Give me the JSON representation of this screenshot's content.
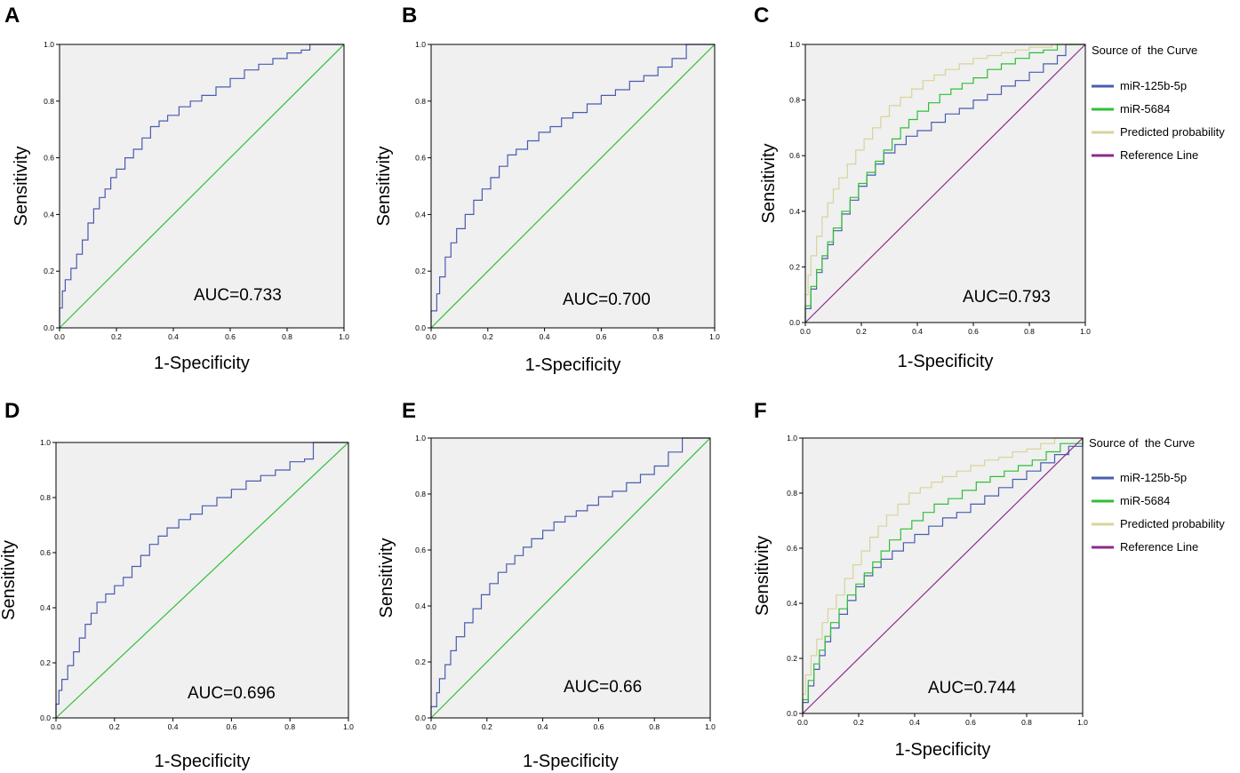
{
  "figure": {
    "panels": [
      "A",
      "B",
      "C",
      "D",
      "E",
      "F"
    ]
  },
  "colors": {
    "plot_background": "#f0f0f0",
    "frame": "#000000",
    "mir125b": "#4a5cb0",
    "mir5684": "#2fbf35",
    "predicted": "#d8d39a",
    "reference_single": "#2fbf35",
    "reference_multi": "#8c2a8c"
  },
  "chart_data": [
    {
      "panel": "A",
      "type": "line",
      "xlabel": "1-Specificity",
      "ylabel": "Sensitivity",
      "x_ticks": [
        "0.0",
        "0.2",
        "0.4",
        "0.6",
        "0.8",
        "1.0"
      ],
      "y_ticks": [
        "0.0",
        "0.2",
        "0.4",
        "0.6",
        "0.8",
        "1.0"
      ],
      "xlim": [
        0,
        1
      ],
      "ylim": [
        0,
        1
      ],
      "annotation": "AUC=0.733",
      "series": [
        {
          "name": "ROC",
          "color_key": "mir125b",
          "step": true,
          "x": [
            0,
            0,
            0.01,
            0.02,
            0.04,
            0.06,
            0.08,
            0.1,
            0.12,
            0.14,
            0.16,
            0.18,
            0.2,
            0.23,
            0.26,
            0.29,
            0.32,
            0.35,
            0.38,
            0.42,
            0.46,
            0.5,
            0.55,
            0.6,
            0.65,
            0.7,
            0.75,
            0.8,
            0.85,
            0.88,
            1.0
          ],
          "y": [
            0,
            0.07,
            0.13,
            0.17,
            0.21,
            0.26,
            0.31,
            0.37,
            0.42,
            0.46,
            0.49,
            0.53,
            0.56,
            0.6,
            0.63,
            0.67,
            0.71,
            0.73,
            0.75,
            0.78,
            0.8,
            0.82,
            0.85,
            0.88,
            0.91,
            0.93,
            0.95,
            0.97,
            0.98,
            1.0,
            1.0
          ]
        },
        {
          "name": "Reference",
          "color_key": "reference_single",
          "step": false,
          "x": [
            0,
            1
          ],
          "y": [
            0,
            1
          ]
        }
      ]
    },
    {
      "panel": "B",
      "type": "line",
      "xlabel": "1-Specificity",
      "ylabel": "Sensitivity",
      "x_ticks": [
        "0.0",
        "0.2",
        "0.4",
        "0.6",
        "0.8",
        "1.0"
      ],
      "y_ticks": [
        "0.0",
        "0.2",
        "0.4",
        "0.6",
        "0.8",
        "1.0"
      ],
      "xlim": [
        0,
        1
      ],
      "ylim": [
        0,
        1
      ],
      "annotation": "AUC=0.700",
      "series": [
        {
          "name": "ROC",
          "color_key": "mir125b",
          "step": true,
          "x": [
            0,
            0,
            0.02,
            0.03,
            0.05,
            0.07,
            0.09,
            0.12,
            0.15,
            0.18,
            0.21,
            0.24,
            0.27,
            0.3,
            0.34,
            0.38,
            0.42,
            0.46,
            0.5,
            0.55,
            0.6,
            0.65,
            0.7,
            0.75,
            0.8,
            0.85,
            0.9,
            1.0
          ],
          "y": [
            0,
            0.06,
            0.12,
            0.18,
            0.25,
            0.3,
            0.35,
            0.4,
            0.45,
            0.49,
            0.53,
            0.57,
            0.61,
            0.63,
            0.66,
            0.69,
            0.71,
            0.74,
            0.76,
            0.79,
            0.82,
            0.84,
            0.87,
            0.89,
            0.92,
            0.95,
            1.0,
            1.0
          ]
        },
        {
          "name": "Reference",
          "color_key": "reference_single",
          "step": false,
          "x": [
            0,
            1
          ],
          "y": [
            0,
            1
          ]
        }
      ]
    },
    {
      "panel": "C",
      "type": "line",
      "xlabel": "1-Specificity",
      "ylabel": "Sensitivity",
      "x_ticks": [
        "0.0",
        "0.2",
        "0.4",
        "0.6",
        "0.8",
        "1.0"
      ],
      "y_ticks": [
        "0.0",
        "0.2",
        "0.4",
        "0.6",
        "0.8",
        "1.0"
      ],
      "xlim": [
        0,
        1
      ],
      "ylim": [
        0,
        1
      ],
      "annotation": "AUC=0.793",
      "legend": {
        "title": "Source of  the Curve",
        "position": "right"
      },
      "series": [
        {
          "name": "miR-125b-5p",
          "color_key": "mir125b",
          "step": true,
          "x": [
            0,
            0,
            0.02,
            0.04,
            0.06,
            0.08,
            0.1,
            0.13,
            0.16,
            0.19,
            0.22,
            0.25,
            0.28,
            0.32,
            0.36,
            0.4,
            0.45,
            0.5,
            0.55,
            0.6,
            0.65,
            0.7,
            0.75,
            0.8,
            0.85,
            0.9,
            0.93,
            1.0
          ],
          "y": [
            0,
            0.05,
            0.12,
            0.18,
            0.23,
            0.28,
            0.33,
            0.39,
            0.44,
            0.49,
            0.53,
            0.57,
            0.61,
            0.64,
            0.67,
            0.69,
            0.72,
            0.75,
            0.77,
            0.8,
            0.82,
            0.85,
            0.87,
            0.9,
            0.93,
            0.96,
            1.0,
            1.0
          ]
        },
        {
          "name": "miR-5684",
          "color_key": "mir5684",
          "step": true,
          "x": [
            0,
            0,
            0.02,
            0.04,
            0.06,
            0.08,
            0.1,
            0.13,
            0.16,
            0.19,
            0.22,
            0.25,
            0.28,
            0.31,
            0.34,
            0.37,
            0.4,
            0.44,
            0.48,
            0.52,
            0.56,
            0.6,
            0.65,
            0.7,
            0.75,
            0.8,
            0.85,
            0.9,
            1.0
          ],
          "y": [
            0,
            0.06,
            0.13,
            0.19,
            0.24,
            0.29,
            0.34,
            0.4,
            0.45,
            0.5,
            0.54,
            0.58,
            0.62,
            0.66,
            0.7,
            0.73,
            0.76,
            0.79,
            0.82,
            0.84,
            0.86,
            0.88,
            0.91,
            0.93,
            0.95,
            0.97,
            0.98,
            1.0,
            1.0
          ]
        },
        {
          "name": "Predicted probability",
          "color_key": "predicted",
          "step": true,
          "x": [
            0,
            0,
            0.01,
            0.02,
            0.04,
            0.06,
            0.08,
            0.1,
            0.12,
            0.15,
            0.18,
            0.21,
            0.24,
            0.27,
            0.3,
            0.34,
            0.38,
            0.42,
            0.46,
            0.5,
            0.55,
            0.6,
            0.65,
            0.7,
            0.75,
            0.8,
            0.85,
            0.88,
            1.0
          ],
          "y": [
            0,
            0.1,
            0.17,
            0.24,
            0.31,
            0.38,
            0.43,
            0.48,
            0.52,
            0.57,
            0.62,
            0.66,
            0.7,
            0.74,
            0.78,
            0.81,
            0.84,
            0.87,
            0.89,
            0.91,
            0.93,
            0.95,
            0.96,
            0.97,
            0.98,
            0.99,
            0.99,
            1.0,
            1.0
          ]
        },
        {
          "name": "Reference Line",
          "color_key": "reference_multi",
          "step": false,
          "x": [
            0,
            1
          ],
          "y": [
            0,
            1
          ]
        }
      ]
    },
    {
      "panel": "D",
      "type": "line",
      "xlabel": "1-Specificity",
      "ylabel": "Sensitivity",
      "x_ticks": [
        "0.0",
        "0.2",
        "0.4",
        "0.6",
        "0.8",
        "1.0"
      ],
      "y_ticks": [
        "0.0",
        "0.2",
        "0.4",
        "0.6",
        "0.8",
        "1.0"
      ],
      "xlim": [
        0,
        1
      ],
      "ylim": [
        0,
        1
      ],
      "annotation": "AUC=0.696",
      "series": [
        {
          "name": "ROC",
          "color_key": "mir125b",
          "step": true,
          "x": [
            0,
            0,
            0.01,
            0.02,
            0.04,
            0.06,
            0.08,
            0.1,
            0.12,
            0.14,
            0.17,
            0.2,
            0.23,
            0.26,
            0.29,
            0.32,
            0.35,
            0.38,
            0.42,
            0.46,
            0.5,
            0.55,
            0.6,
            0.65,
            0.7,
            0.75,
            0.8,
            0.85,
            0.88,
            1.0
          ],
          "y": [
            0,
            0.05,
            0.1,
            0.14,
            0.19,
            0.24,
            0.29,
            0.34,
            0.38,
            0.42,
            0.45,
            0.48,
            0.51,
            0.55,
            0.59,
            0.63,
            0.66,
            0.69,
            0.72,
            0.74,
            0.77,
            0.8,
            0.83,
            0.86,
            0.88,
            0.9,
            0.93,
            0.94,
            1.0,
            1.0
          ]
        },
        {
          "name": "Reference",
          "color_key": "reference_single",
          "step": false,
          "x": [
            0,
            1
          ],
          "y": [
            0,
            1
          ]
        }
      ]
    },
    {
      "panel": "E",
      "type": "line",
      "xlabel": "1-Specificity",
      "ylabel": "Sensitivity",
      "x_ticks": [
        "0.0",
        "0.2",
        "0.4",
        "0.6",
        "0.8",
        "1.0"
      ],
      "y_ticks": [
        "0.0",
        "0.2",
        "0.4",
        "0.6",
        "0.8",
        "1.0"
      ],
      "xlim": [
        0,
        1
      ],
      "ylim": [
        0,
        1
      ],
      "annotation": "AUC=0.66",
      "series": [
        {
          "name": "ROC",
          "color_key": "mir125b",
          "step": true,
          "x": [
            0,
            0,
            0.02,
            0.03,
            0.05,
            0.07,
            0.09,
            0.12,
            0.15,
            0.18,
            0.21,
            0.24,
            0.27,
            0.3,
            0.33,
            0.36,
            0.4,
            0.44,
            0.48,
            0.52,
            0.56,
            0.6,
            0.65,
            0.7,
            0.75,
            0.8,
            0.85,
            0.9,
            1.0
          ],
          "y": [
            0,
            0.04,
            0.09,
            0.14,
            0.19,
            0.24,
            0.29,
            0.34,
            0.39,
            0.44,
            0.48,
            0.52,
            0.55,
            0.58,
            0.61,
            0.64,
            0.67,
            0.7,
            0.72,
            0.74,
            0.76,
            0.79,
            0.81,
            0.84,
            0.87,
            0.9,
            0.95,
            1.0,
            1.0
          ]
        },
        {
          "name": "Reference",
          "color_key": "reference_single",
          "step": false,
          "x": [
            0,
            1
          ],
          "y": [
            0,
            1
          ]
        }
      ]
    },
    {
      "panel": "F",
      "type": "line",
      "xlabel": "1-Specificity",
      "ylabel": "Sensitivity",
      "x_ticks": [
        "0.0",
        "0.2",
        "0.4",
        "0.6",
        "0.8",
        "1.0"
      ],
      "y_ticks": [
        "0.0",
        "0.2",
        "0.4",
        "0.6",
        "0.8",
        "1.0"
      ],
      "xlim": [
        0,
        1
      ],
      "ylim": [
        0,
        1
      ],
      "annotation": "AUC=0.744",
      "legend": {
        "title": "Source of  the Curve",
        "position": "right"
      },
      "series": [
        {
          "name": "miR-125b-5p",
          "color_key": "mir125b",
          "step": true,
          "x": [
            0,
            0,
            0.02,
            0.04,
            0.06,
            0.08,
            0.1,
            0.13,
            0.16,
            0.19,
            0.22,
            0.25,
            0.28,
            0.32,
            0.36,
            0.4,
            0.45,
            0.5,
            0.55,
            0.6,
            0.65,
            0.7,
            0.75,
            0.8,
            0.85,
            0.9,
            0.95,
            1.0
          ],
          "y": [
            0,
            0.04,
            0.1,
            0.16,
            0.21,
            0.26,
            0.31,
            0.36,
            0.41,
            0.46,
            0.5,
            0.53,
            0.56,
            0.59,
            0.62,
            0.65,
            0.68,
            0.71,
            0.73,
            0.76,
            0.79,
            0.82,
            0.85,
            0.88,
            0.91,
            0.94,
            0.97,
            1.0
          ]
        },
        {
          "name": "miR-5684",
          "color_key": "mir5684",
          "step": true,
          "x": [
            0,
            0,
            0.02,
            0.04,
            0.06,
            0.08,
            0.1,
            0.13,
            0.16,
            0.19,
            0.22,
            0.25,
            0.28,
            0.31,
            0.35,
            0.39,
            0.43,
            0.47,
            0.52,
            0.57,
            0.62,
            0.67,
            0.72,
            0.77,
            0.82,
            0.87,
            0.92,
            1.0
          ],
          "y": [
            0,
            0.05,
            0.12,
            0.18,
            0.23,
            0.28,
            0.33,
            0.38,
            0.43,
            0.47,
            0.51,
            0.55,
            0.59,
            0.63,
            0.67,
            0.7,
            0.73,
            0.76,
            0.78,
            0.81,
            0.84,
            0.86,
            0.88,
            0.9,
            0.92,
            0.95,
            0.98,
            1.0
          ]
        },
        {
          "name": "Predicted probability",
          "color_key": "predicted",
          "step": true,
          "x": [
            0,
            0,
            0.01,
            0.03,
            0.05,
            0.07,
            0.09,
            0.12,
            0.15,
            0.18,
            0.21,
            0.24,
            0.27,
            0.3,
            0.34,
            0.38,
            0.42,
            0.46,
            0.5,
            0.55,
            0.6,
            0.65,
            0.7,
            0.75,
            0.8,
            0.85,
            0.9,
            1.0
          ],
          "y": [
            0,
            0.07,
            0.14,
            0.21,
            0.27,
            0.33,
            0.38,
            0.43,
            0.49,
            0.54,
            0.59,
            0.64,
            0.68,
            0.72,
            0.76,
            0.8,
            0.82,
            0.84,
            0.86,
            0.88,
            0.9,
            0.92,
            0.93,
            0.95,
            0.96,
            0.98,
            1.0,
            1.0
          ]
        },
        {
          "name": "Reference Line",
          "color_key": "reference_multi",
          "step": false,
          "x": [
            0,
            1
          ],
          "y": [
            0,
            1
          ]
        }
      ]
    }
  ]
}
